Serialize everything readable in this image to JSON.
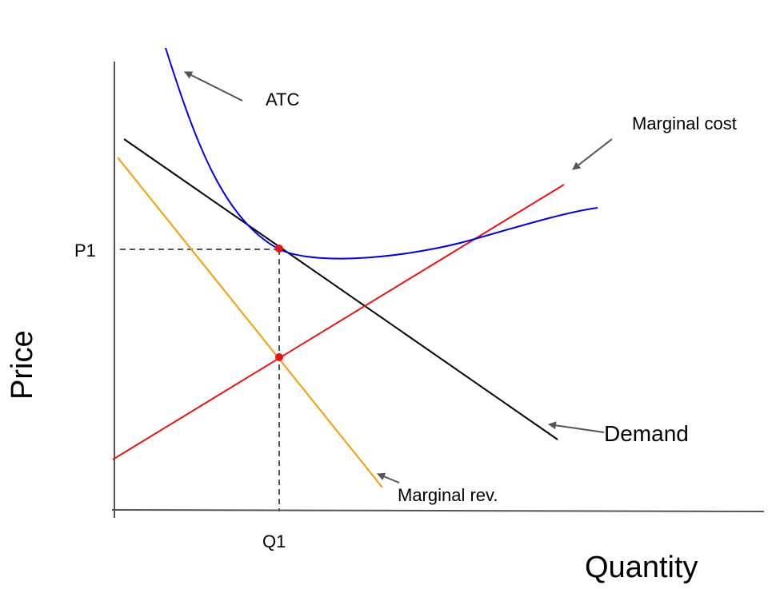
{
  "axes": {
    "y_label": "Price",
    "x_label": "Quantity",
    "y_tick": "P1",
    "x_tick": "Q1"
  },
  "curves": {
    "atc": {
      "label": "ATC",
      "color": "#0000ee"
    },
    "marginal_cost": {
      "label": "Marginal cost",
      "color": "#ee1111"
    },
    "demand": {
      "label": "Demand",
      "color": "#000000"
    },
    "marginal_revenue": {
      "label": "Marginal rev.",
      "color": "#ff9900"
    }
  },
  "colors": {
    "axis": "#555555",
    "guide": "#555555",
    "arrow": "#555555",
    "point": "#ee1111"
  }
}
